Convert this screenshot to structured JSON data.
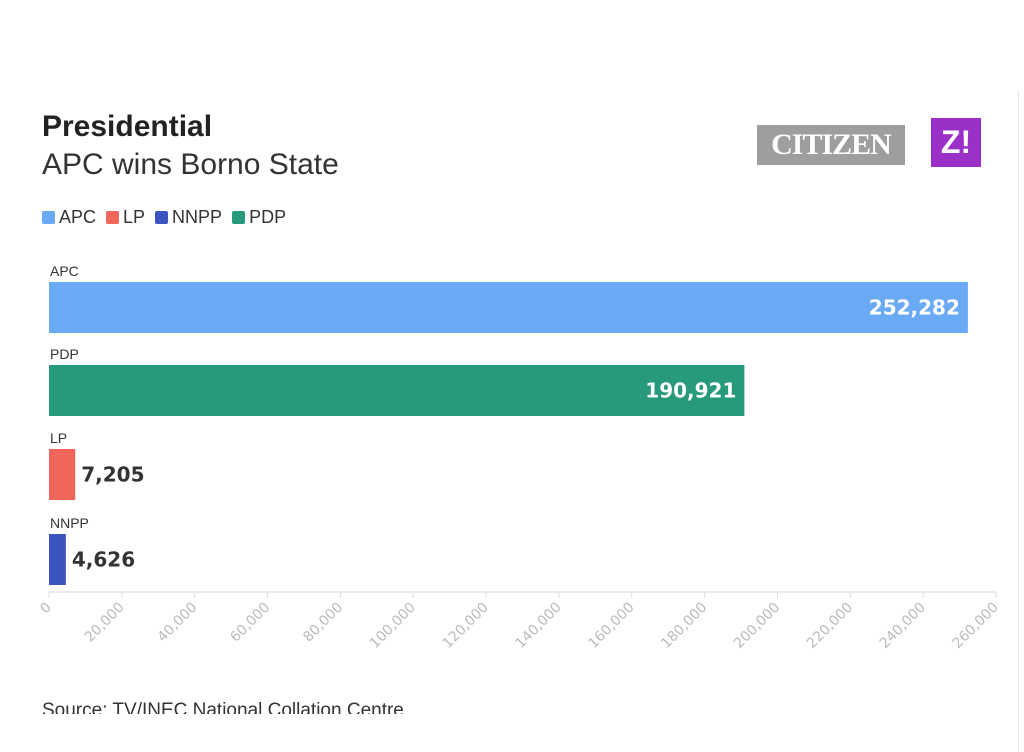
{
  "chart_data": {
    "type": "bar",
    "orientation": "horizontal",
    "title": "Presidential",
    "subtitle": "APC wins Borno State",
    "categories": [
      "APC",
      "PDP",
      "LP",
      "NNPP"
    ],
    "values": [
      252282,
      190921,
      7205,
      4626
    ],
    "value_labels": [
      "252,282",
      "190,921",
      "7,205",
      "4,626"
    ],
    "colors": [
      "#6aaaf5",
      "#269a7a",
      "#f0665a",
      "#3a55c0"
    ],
    "legend": [
      {
        "label": "APC",
        "color": "#6aaaf5"
      },
      {
        "label": "LP",
        "color": "#f0665a"
      },
      {
        "label": "NNPP",
        "color": "#3a55c0"
      },
      {
        "label": "PDP",
        "color": "#269a7a"
      }
    ],
    "legend_position": "top-left",
    "xlim": [
      0,
      260000
    ],
    "xticks": [
      0,
      20000,
      40000,
      60000,
      80000,
      100000,
      120000,
      140000,
      160000,
      180000,
      200000,
      220000,
      240000,
      260000
    ],
    "xtick_labels": [
      "0",
      "20,000",
      "40,000",
      "60,000",
      "80,000",
      "100,000",
      "120,000",
      "140,000",
      "160,000",
      "180,000",
      "200,000",
      "220,000",
      "240,000",
      "260,000"
    ],
    "xlabel": "",
    "ylabel": "",
    "grid": false,
    "source": "Source: TV/INEC National Collation Centre"
  },
  "logos": {
    "citizen": "CITIZEN",
    "z": "Z!"
  }
}
